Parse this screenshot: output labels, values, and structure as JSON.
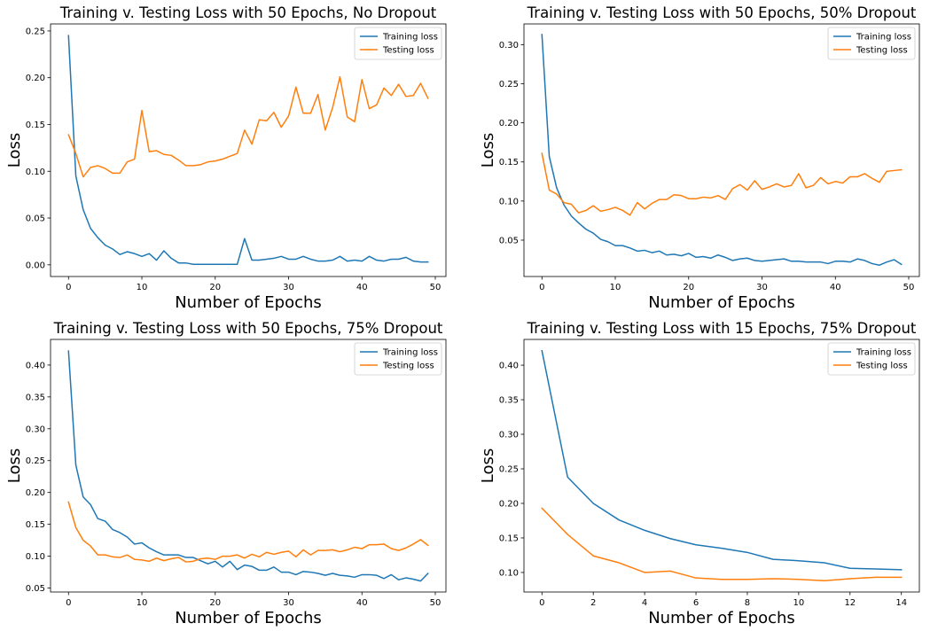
{
  "colors": {
    "training": "#1f77b4",
    "testing": "#ff7f0e"
  },
  "chart_data": [
    {
      "type": "line",
      "title": "Training v. Testing Loss with 50 Epochs, No Dropout",
      "xlabel": "Number of Epochs",
      "ylabel": "Loss",
      "xlim": [
        -2.45,
        51.45
      ],
      "ylim": [
        -0.0125,
        0.2575
      ],
      "xticks": [
        0,
        10,
        20,
        30,
        40,
        50
      ],
      "xtick_labels": [
        "0",
        "10",
        "20",
        "30",
        "40",
        "50"
      ],
      "yticks": [
        0,
        0.05,
        0.1,
        0.15,
        0.2,
        0.25
      ],
      "ytick_labels": [
        "0.00",
        "0.05",
        "0.10",
        "0.15",
        "0.20",
        "0.25"
      ],
      "grid": false,
      "legend": "top-right",
      "series": [
        {
          "name": "Training loss",
          "color": "#1f77b4",
          "values": [
            0.245,
            0.095,
            0.059,
            0.039,
            0.029,
            0.021,
            0.017,
            0.011,
            0.014,
            0.012,
            0.009,
            0.012,
            0.005,
            0.015,
            0.007,
            0.002,
            0.002,
            0.0005,
            0.0005,
            0.0005,
            0.0005,
            0.0005,
            0.0005,
            0.0005,
            0.028,
            0.005,
            0.005,
            0.006,
            0.007,
            0.009,
            0.006,
            0.006,
            0.009,
            0.006,
            0.004,
            0.004,
            0.005,
            0.009,
            0.004,
            0.005,
            0.004,
            0.009,
            0.005,
            0.004,
            0.006,
            0.006,
            0.008,
            0.004,
            0.003,
            0.003
          ]
        },
        {
          "name": "Testing loss",
          "color": "#ff7f0e",
          "values": [
            0.139,
            0.119,
            0.094,
            0.104,
            0.106,
            0.103,
            0.098,
            0.098,
            0.11,
            0.113,
            0.165,
            0.121,
            0.122,
            0.118,
            0.117,
            0.112,
            0.106,
            0.106,
            0.107,
            0.11,
            0.111,
            0.113,
            0.116,
            0.119,
            0.144,
            0.129,
            0.155,
            0.154,
            0.163,
            0.147,
            0.159,
            0.19,
            0.162,
            0.162,
            0.182,
            0.144,
            0.168,
            0.201,
            0.158,
            0.153,
            0.198,
            0.167,
            0.171,
            0.189,
            0.181,
            0.193,
            0.18,
            0.181,
            0.194,
            0.178
          ]
        }
      ]
    },
    {
      "type": "line",
      "title": "Training v. Testing Loss with 50 Epochs, 50% Dropout",
      "xlabel": "Number of Epochs",
      "ylabel": "Loss",
      "xlim": [
        -2.45,
        51.45
      ],
      "ylim": [
        0.0035,
        0.3265
      ],
      "xticks": [
        0,
        10,
        20,
        30,
        40,
        50
      ],
      "xtick_labels": [
        "0",
        "10",
        "20",
        "30",
        "40",
        "50"
      ],
      "yticks": [
        0.05,
        0.1,
        0.15,
        0.2,
        0.25,
        0.3
      ],
      "ytick_labels": [
        "0.05",
        "0.10",
        "0.15",
        "0.20",
        "0.25",
        "0.30"
      ],
      "grid": false,
      "legend": "top-right",
      "series": [
        {
          "name": "Training loss",
          "color": "#1f77b4",
          "values": [
            0.313,
            0.157,
            0.117,
            0.095,
            0.081,
            0.072,
            0.064,
            0.059,
            0.051,
            0.048,
            0.043,
            0.043,
            0.04,
            0.036,
            0.037,
            0.034,
            0.036,
            0.031,
            0.032,
            0.03,
            0.033,
            0.028,
            0.029,
            0.027,
            0.031,
            0.028,
            0.024,
            0.026,
            0.027,
            0.024,
            0.023,
            0.024,
            0.025,
            0.026,
            0.023,
            0.023,
            0.022,
            0.022,
            0.022,
            0.02,
            0.023,
            0.023,
            0.022,
            0.026,
            0.024,
            0.02,
            0.018,
            0.022,
            0.025,
            0.019
          ]
        },
        {
          "name": "Testing loss",
          "color": "#ff7f0e",
          "values": [
            0.161,
            0.114,
            0.109,
            0.098,
            0.096,
            0.085,
            0.088,
            0.094,
            0.087,
            0.089,
            0.092,
            0.088,
            0.082,
            0.098,
            0.09,
            0.097,
            0.102,
            0.102,
            0.108,
            0.107,
            0.103,
            0.103,
            0.105,
            0.104,
            0.107,
            0.102,
            0.116,
            0.121,
            0.114,
            0.126,
            0.115,
            0.118,
            0.122,
            0.118,
            0.12,
            0.135,
            0.117,
            0.12,
            0.13,
            0.122,
            0.125,
            0.123,
            0.131,
            0.131,
            0.135,
            0.129,
            0.124,
            0.138,
            0.139,
            0.14
          ]
        }
      ]
    },
    {
      "type": "line",
      "title": "Training v. Testing Loss with 50 Epochs, 75% Dropout",
      "xlabel": "Number of Epochs",
      "ylabel": "Loss",
      "xlim": [
        -2.45,
        51.45
      ],
      "ylim": [
        0.0438,
        0.4402
      ],
      "xticks": [
        0,
        10,
        20,
        30,
        40,
        50
      ],
      "xtick_labels": [
        "0",
        "10",
        "20",
        "30",
        "40",
        "50"
      ],
      "yticks": [
        0.05,
        0.1,
        0.15,
        0.2,
        0.25,
        0.3,
        0.35,
        0.4
      ],
      "ytick_labels": [
        "0.05",
        "0.10",
        "0.15",
        "0.20",
        "0.25",
        "0.30",
        "0.35",
        "0.40"
      ],
      "grid": false,
      "legend": "top-right",
      "series": [
        {
          "name": "Training loss",
          "color": "#1f77b4",
          "values": [
            0.422,
            0.243,
            0.193,
            0.181,
            0.159,
            0.155,
            0.142,
            0.137,
            0.13,
            0.119,
            0.121,
            0.113,
            0.107,
            0.102,
            0.102,
            0.102,
            0.098,
            0.098,
            0.093,
            0.088,
            0.092,
            0.083,
            0.092,
            0.079,
            0.086,
            0.084,
            0.078,
            0.078,
            0.083,
            0.075,
            0.075,
            0.071,
            0.076,
            0.075,
            0.073,
            0.07,
            0.073,
            0.07,
            0.069,
            0.067,
            0.071,
            0.071,
            0.07,
            0.065,
            0.071,
            0.063,
            0.066,
            0.064,
            0.061,
            0.073
          ]
        },
        {
          "name": "Testing loss",
          "color": "#ff7f0e",
          "values": [
            0.185,
            0.145,
            0.125,
            0.116,
            0.102,
            0.102,
            0.099,
            0.098,
            0.102,
            0.095,
            0.094,
            0.092,
            0.097,
            0.093,
            0.096,
            0.098,
            0.091,
            0.092,
            0.096,
            0.097,
            0.095,
            0.1,
            0.1,
            0.102,
            0.097,
            0.103,
            0.099,
            0.106,
            0.103,
            0.106,
            0.108,
            0.099,
            0.11,
            0.102,
            0.109,
            0.109,
            0.11,
            0.107,
            0.11,
            0.114,
            0.112,
            0.118,
            0.118,
            0.119,
            0.112,
            0.109,
            0.113,
            0.119,
            0.126,
            0.117
          ]
        }
      ]
    },
    {
      "type": "line",
      "title": "Training v. Testing Loss with 15 Epochs, 75% Dropout",
      "xlabel": "Number of Epochs",
      "ylabel": "Loss",
      "xlim": [
        -0.7,
        14.7
      ],
      "ylim": [
        0.0717,
        0.4373
      ],
      "xticks": [
        0,
        2,
        4,
        6,
        8,
        10,
        12,
        14
      ],
      "xtick_labels": [
        "0",
        "2",
        "4",
        "6",
        "8",
        "10",
        "12",
        "14"
      ],
      "yticks": [
        0.1,
        0.15,
        0.2,
        0.25,
        0.3,
        0.35,
        0.4
      ],
      "ytick_labels": [
        "0.10",
        "0.15",
        "0.20",
        "0.25",
        "0.30",
        "0.35",
        "0.40"
      ],
      "grid": false,
      "legend": "top-right",
      "series": [
        {
          "name": "Training loss",
          "color": "#1f77b4",
          "values": [
            0.421,
            0.238,
            0.2,
            0.176,
            0.161,
            0.149,
            0.14,
            0.135,
            0.129,
            0.119,
            0.117,
            0.114,
            0.106,
            0.105,
            0.104
          ]
        },
        {
          "name": "Testing loss",
          "color": "#ff7f0e",
          "values": [
            0.193,
            0.155,
            0.124,
            0.114,
            0.1,
            0.102,
            0.092,
            0.09,
            0.09,
            0.091,
            0.09,
            0.088,
            0.091,
            0.093,
            0.093
          ]
        }
      ]
    }
  ]
}
